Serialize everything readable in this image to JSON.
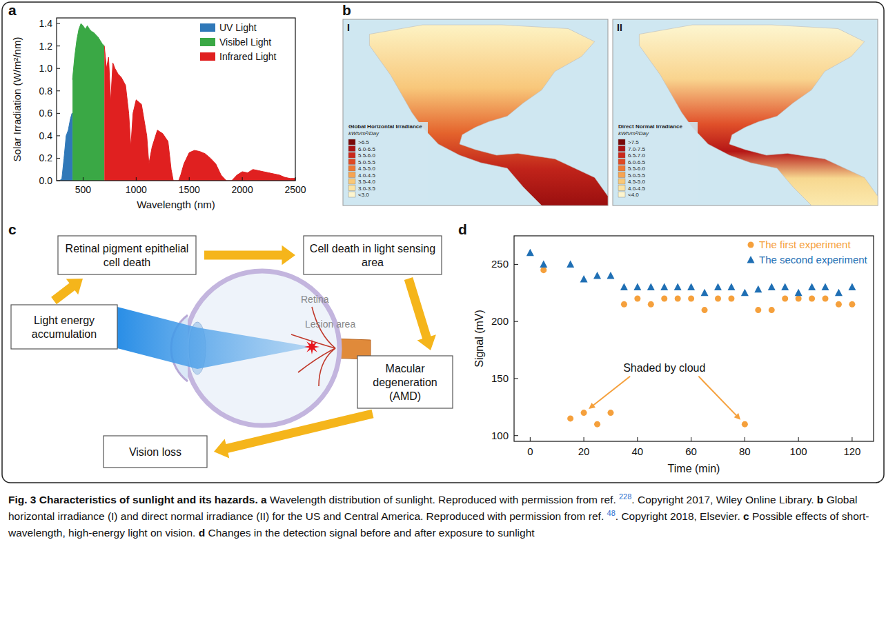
{
  "panel_labels": [
    "a",
    "b",
    "c",
    "d"
  ],
  "chart_data": [
    {
      "type": "area",
      "legend": "top-right",
      "xlabel": "Wavelength (nm)",
      "ylabel": "Solar Irradiation (W/m²/nm)",
      "xlim": [
        250,
        2500
      ],
      "ylim": [
        0,
        1.45
      ],
      "xticks": [
        500,
        1000,
        1500,
        2000,
        2500
      ],
      "yticks": [
        {
          "value": 0,
          "label": "0.0"
        },
        0.2,
        0.4,
        0.6,
        0.8,
        {
          "value": 1,
          "label": "1.0"
        },
        1.2,
        1.4
      ],
      "series": [
        {
          "name": "UV Light",
          "color": "#2f78b8",
          "x": [
            280,
            300,
            320,
            340,
            360,
            380,
            395,
            400
          ],
          "values": [
            0,
            0.02,
            0.2,
            0.4,
            0.45,
            0.55,
            0.6,
            0.6
          ]
        },
        {
          "name": "Visibel Light",
          "color": "#3aa845",
          "x": [
            400,
            420,
            440,
            460,
            480,
            500,
            520,
            540,
            560,
            580,
            600,
            620,
            640,
            660,
            680,
            700
          ],
          "values": [
            0.9,
            1.1,
            1.25,
            1.35,
            1.4,
            1.38,
            1.35,
            1.38,
            1.35,
            1.33,
            1.32,
            1.3,
            1.28,
            1.25,
            1.22,
            1.2
          ]
        },
        {
          "name": "Infrared Light",
          "color": "#e02020",
          "x": [
            700,
            720,
            740,
            760,
            780,
            800,
            830,
            860,
            900,
            930,
            950,
            970,
            1000,
            1050,
            1100,
            1120,
            1150,
            1200,
            1250,
            1300,
            1330,
            1350,
            1400,
            1420,
            1450,
            1500,
            1550,
            1600,
            1650,
            1700,
            1750,
            1800,
            1850,
            1900,
            1950,
            2000,
            2050,
            2100,
            2150,
            2200,
            2250,
            2300,
            2350,
            2400,
            2450,
            2500
          ],
          "values": [
            1.2,
            1.0,
            1.1,
            0.7,
            1.05,
            1.0,
            0.95,
            0.92,
            0.85,
            0.6,
            0.3,
            0.6,
            0.72,
            0.68,
            0.4,
            0.15,
            0.3,
            0.45,
            0.42,
            0.35,
            0.1,
            0,
            0,
            0.05,
            0.15,
            0.25,
            0.27,
            0.26,
            0.24,
            0.2,
            0.15,
            0.05,
            0,
            0,
            0.05,
            0.08,
            0.07,
            0.1,
            0.09,
            0.08,
            0.07,
            0.06,
            0.05,
            0.03,
            0.02,
            0.02
          ]
        }
      ]
    },
    {
      "type": "scatter",
      "legend": "top-right",
      "xlabel": "Time (min)",
      "ylabel": "Signal (mV)",
      "xlim": [
        -6,
        128
      ],
      "ylim": [
        95,
        275
      ],
      "xticks": [
        0,
        20,
        40,
        60,
        80,
        100,
        120
      ],
      "yticks": [
        100,
        150,
        200,
        250
      ],
      "annotation": "Shaded by cloud",
      "series": [
        {
          "name": "The first experiment",
          "color": "#f5a03c",
          "marker": "circle",
          "x": [
            5,
            15,
            20,
            25,
            30,
            35,
            40,
            45,
            50,
            55,
            60,
            65,
            70,
            75,
            80,
            85,
            90,
            95,
            100,
            105,
            110,
            115,
            120
          ],
          "values": [
            245,
            115,
            120,
            110,
            120,
            215,
            220,
            215,
            220,
            220,
            220,
            210,
            220,
            220,
            110,
            210,
            210,
            220,
            220,
            220,
            220,
            215,
            215
          ]
        },
        {
          "name": "The second experiment",
          "color": "#1f6fb4",
          "marker": "triangle",
          "x": [
            0,
            5,
            15,
            20,
            25,
            30,
            35,
            40,
            45,
            50,
            55,
            60,
            65,
            70,
            75,
            80,
            85,
            90,
            95,
            100,
            105,
            110,
            115,
            120
          ],
          "values": [
            260,
            250,
            250,
            237,
            240,
            240,
            230,
            230,
            230,
            230,
            230,
            230,
            225,
            230,
            230,
            225,
            228,
            230,
            230,
            225,
            230,
            230,
            225,
            230
          ]
        }
      ]
    }
  ],
  "maps": [
    {
      "label": "I",
      "legend_title": "Global Horizontal Irradiance",
      "legend_unit": "kWh/m²/Day",
      "classes": [
        ">6.5",
        "6.0-6.5",
        "5.5-6.0",
        "5.0-5.5",
        "4.5-5.0",
        "4.0-4.5",
        "3.5-4.0",
        "3.0-3.5",
        "<3.0"
      ]
    },
    {
      "label": "II",
      "legend_title": "Direct Normal Irradiance",
      "legend_unit": "kWh/m²/Day",
      "classes": [
        ">7.5",
        "7.0-7.5",
        "6.5-7.0",
        "6.0-6.5",
        "5.5-6.0",
        "5.0-5.5",
        "4.5-5.0",
        "4.0-4.5",
        "<4.0"
      ]
    }
  ],
  "diagram": {
    "boxes": [
      "Light energy accumulation",
      "Retinal pigment epithelial cell death",
      "Cell death in light sensing area",
      "Macular degeneration (AMD)",
      "Vision loss"
    ],
    "labels": [
      "Retina",
      "Lesion area"
    ]
  },
  "caption": [
    {
      "text": "Fig. 3 Characteristics of sunlight and its hazards.",
      "style": "bold"
    },
    {
      "text": " ",
      "style": "normal"
    },
    {
      "text": "a",
      "style": "bold"
    },
    {
      "text": " Wavelength distribution of sunlight. Reproduced with permission from ref. ",
      "style": "normal"
    },
    {
      "text": "228",
      "style": "ref"
    },
    {
      "text": ". Copyright 2017, Wiley Online Library. ",
      "style": "normal"
    },
    {
      "text": "b",
      "style": "bold"
    },
    {
      "text": " Global horizontal irradiance (I) and direct normal irradiance (II) for the US and Central America. Reproduced with permission from ref. ",
      "style": "normal"
    },
    {
      "text": "48",
      "style": "ref"
    },
    {
      "text": ". Copyright 2018, Elsevier. ",
      "style": "normal"
    },
    {
      "text": "c",
      "style": "bold"
    },
    {
      "text": " Possible effects of short-wavelength, high-energy light on vision. ",
      "style": "normal"
    },
    {
      "text": "d",
      "style": "bold"
    },
    {
      "text": " Changes in the detection signal before and after exposure to sunlight",
      "style": "normal"
    }
  ]
}
